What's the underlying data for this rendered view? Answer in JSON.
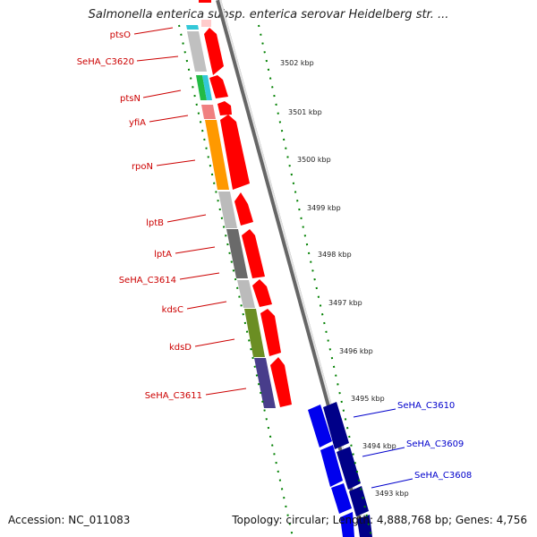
{
  "title": "Salmonella enterica subsp. enterica serovar Heidelberg str. ...",
  "footer": {
    "accession": "Accession: NC_011083",
    "summary": "Topology: circular; Length: 4,888,768 bp; Genes: 4,756"
  },
  "colors": {
    "forward_arrow": "#ff0000",
    "reverse_arrow": "#0000ee",
    "reverse_arrow_dark": "#000088",
    "forward_label": "#cc0000",
    "reverse_label": "#0000cc",
    "tick": "#008000",
    "backbone": "#999999"
  },
  "kbp_ticks": [
    "3502 kbp",
    "3501 kbp",
    "3500 kbp",
    "3499 kbp",
    "3498 kbp",
    "3497 kbp",
    "3496 kbp",
    "3495 kbp",
    "3494 kbp",
    "3493 kbp"
  ],
  "genes_forward": [
    {
      "label": "ptsO",
      "cog_color": "#33c8d8"
    },
    {
      "label": "SeHA_C3620",
      "cog_color": "#c0c0c0"
    },
    {
      "label": "ptsN",
      "cog_color": "#22bb44"
    },
    {
      "label": "yfiA",
      "cog_color": "#f08080"
    },
    {
      "label": "rpoN",
      "cog_color": "#ff9900"
    },
    {
      "label": "lptB",
      "cog_color": "#bbbbbb"
    },
    {
      "label": "lptA",
      "cog_color": "#6a6a6a"
    },
    {
      "label": "SeHA_C3614",
      "cog_color": "#808080"
    },
    {
      "label": "kdsC",
      "cog_color": "#bbbbbb"
    },
    {
      "label": "kdsD",
      "cog_color": "#6b8e23"
    },
    {
      "label": "SeHA_C3611",
      "cog_color": "#483d8b"
    }
  ],
  "genes_reverse": [
    {
      "label": "SeHA_C3610"
    },
    {
      "label": "SeHA_C3609"
    },
    {
      "label": "SeHA_C3608"
    }
  ]
}
